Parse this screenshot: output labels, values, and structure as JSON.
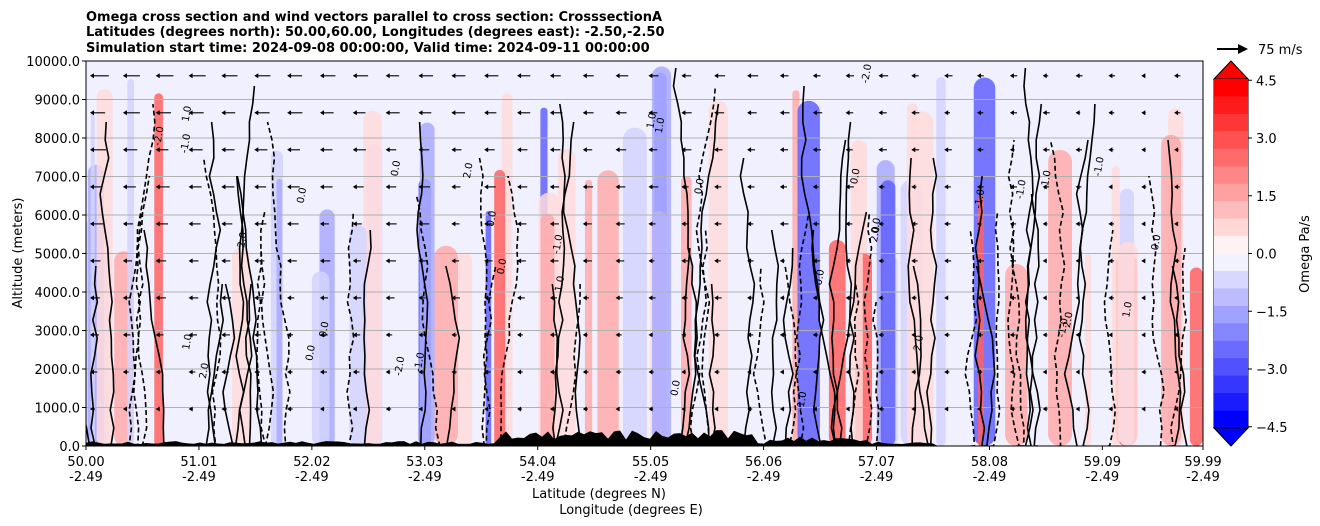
{
  "chart_data": {
    "type": "heatmap",
    "title_lines": [
      "Omega cross section and wind vectors parallel to cross section: CrosssectionA",
      "Latitudes (degrees north): 50.00,60.00, Longitudes (degrees east): -2.50,-2.50",
      "Simulation start time: 2024-09-08 00:00:00, Valid time: 2024-09-11 00:00:00"
    ],
    "ylabel": "Altitude (meters)",
    "xlabel_lat": "Latitude (degrees N)",
    "xlabel_lon": "Longitude (degrees E)",
    "ylim": [
      0,
      10000
    ],
    "xlim": [
      50.0,
      59.99
    ],
    "y_ticks": [
      "0.0",
      "1000.0",
      "2000.0",
      "3000.0",
      "4000.0",
      "5000.0",
      "6000.0",
      "7000.0",
      "8000.0",
      "9000.0",
      "10000.0"
    ],
    "x_ticks_lat": [
      "50.00",
      "51.01",
      "52.02",
      "53.03",
      "54.04",
      "55.05",
      "56.06",
      "57.07",
      "58.08",
      "59.09",
      "59.99"
    ],
    "x_ticks_lon": [
      "-2.49",
      "-2.49",
      "-2.49",
      "-2.49",
      "-2.49",
      "-2.49",
      "-2.49",
      "-2.49",
      "-2.49",
      "-2.49",
      "-2.49"
    ],
    "colorbar": {
      "label": "Omega Pa/s",
      "range": [
        -5,
        5
      ],
      "ticks": [
        "4.5",
        "3.0",
        "1.5",
        "0.0",
        "−1.5",
        "−3.0",
        "−4.5"
      ],
      "extend": "both"
    },
    "quiver_key": "75 m/s",
    "contour_labels": [
      "0.0",
      "1.0",
      "-1.0",
      "2.0",
      "-2.0",
      "0.0",
      "1.0",
      "-1.0",
      "0.0",
      "2.0",
      "-1.0",
      "0.0"
    ],
    "colors": {
      "positive": "#ff0000",
      "negative": "#0000ff",
      "zero": "#ffffff",
      "terrain": "#000000"
    }
  }
}
